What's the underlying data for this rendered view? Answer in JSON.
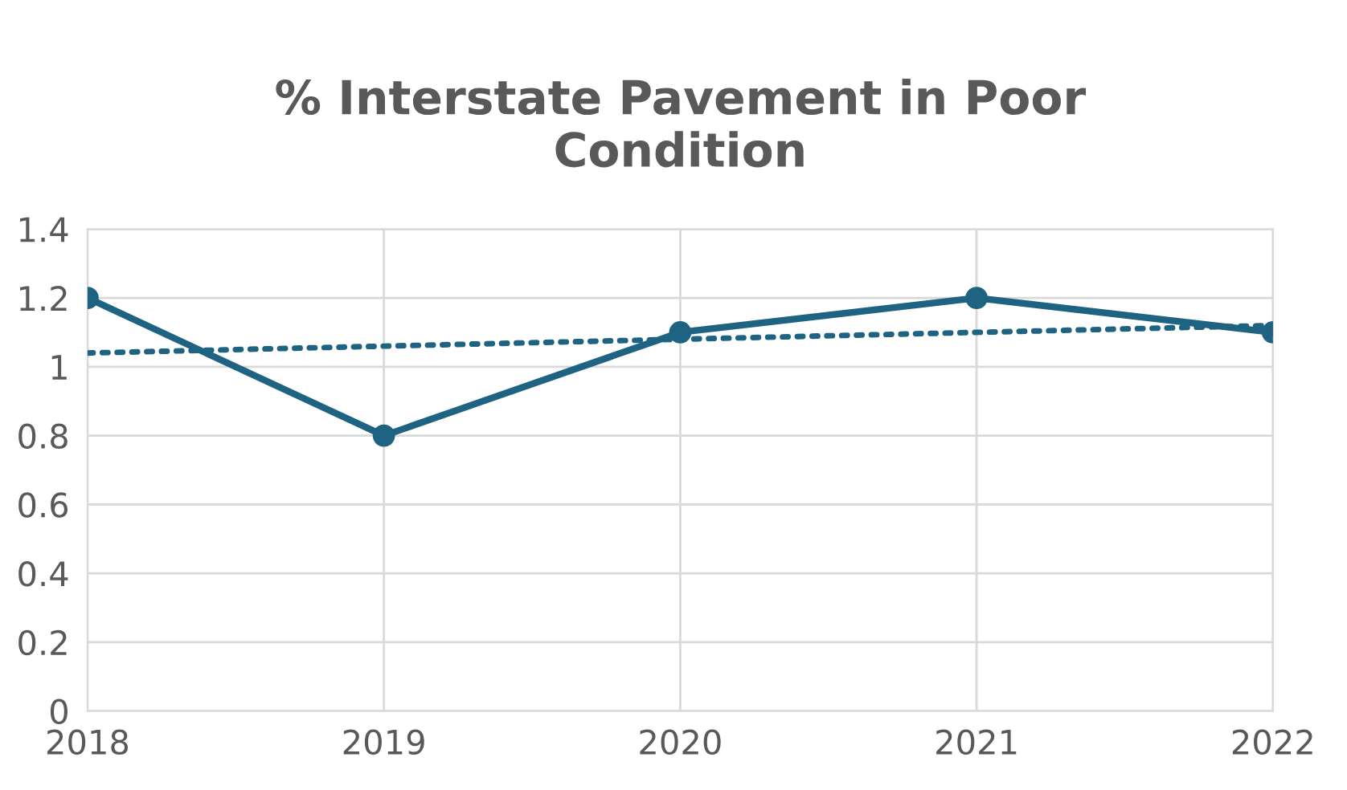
{
  "chart_data": {
    "type": "line",
    "title": "% Interstate Pavement in Poor\nCondition",
    "x": [
      2018,
      2019,
      2020,
      2021,
      2022
    ],
    "series": [
      {
        "color": "#1f6383",
        "values": [
          1.2,
          0.8,
          1.1,
          1.2,
          1.1
        ],
        "marker": "circle",
        "line_style": "solid"
      },
      {
        "type": "line",
        "color": "#1f6383",
        "x": [
          2018,
          2022
        ],
        "values": [
          1.04,
          1.12
        ],
        "marker": "none",
        "line_style": "dotted"
      }
    ],
    "xlim": [
      2018,
      2022
    ],
    "xticks": [
      2018,
      2019,
      2020,
      2021,
      2022
    ],
    "ylim": [
      0,
      1.4
    ],
    "yticks": [
      0,
      0.2,
      0.4,
      0.6,
      0.8,
      1,
      1.2,
      1.4
    ],
    "grid": true,
    "legend": false
  }
}
